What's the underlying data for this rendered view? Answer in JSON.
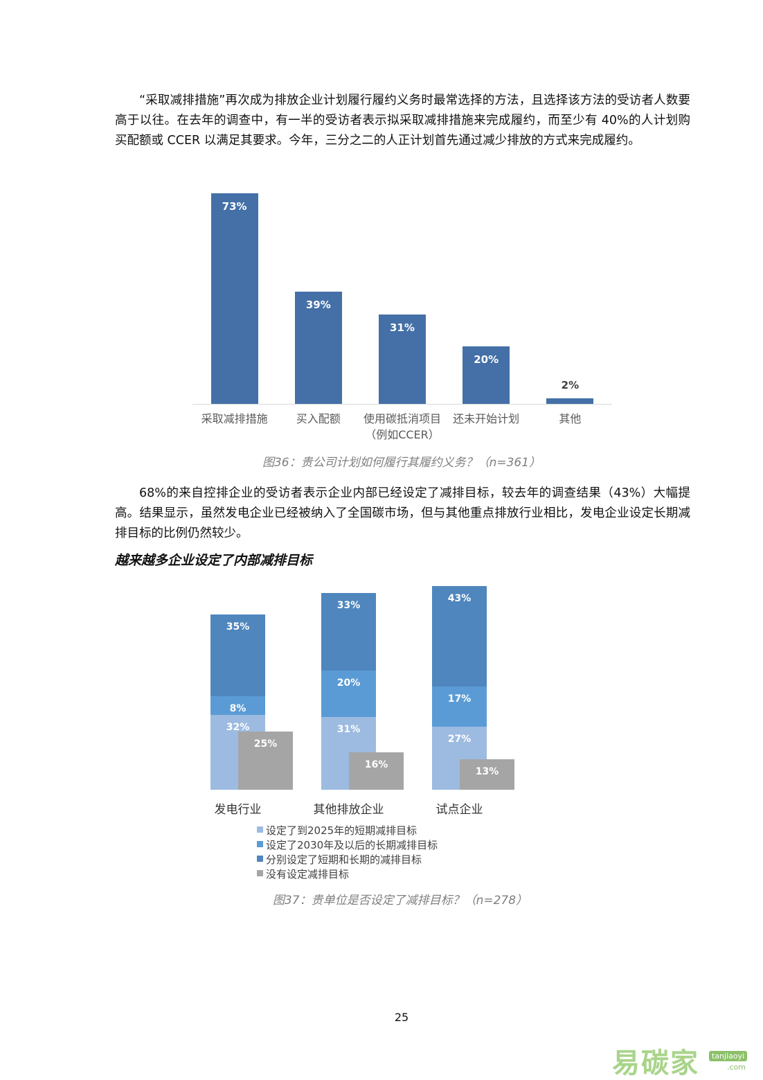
{
  "paragraphs": [
    "“采取减排措施”再次成为排放企业计划履行履约义务时最常选择的方法，且选择该方法的受访者人数要高于以往。在去年的调查中，有一半的受访者表示拟采取减排措施来完成履约，而至少有 40%的人计划购买配额或 CCER 以满足其要求。今年，三分之二的人正计划首先通过减少排放的方式来完成履约。",
    "68%的来自控排企业的受访者表示企业内部已经设定了减排目标，较去年的调查结果（43%）大幅提高。结果显示，虽然发电企业已经被纳入了全国碳市场，但与其他重点排放行业相比，发电企业设定长期减排目标的比例仍然较少。"
  ],
  "section_title": "越来越多企业设定了内部减排目标",
  "chart_data": [
    {
      "type": "bar",
      "caption": "图36：贵公司计划如何履行其履约义务？（n=361）",
      "categories": [
        "采取减排措施",
        "买入配额",
        "使用碳抵消项目\n（例如CCER）",
        "还未开始计划",
        "其他"
      ],
      "values": [
        73,
        39,
        31,
        20,
        2
      ],
      "value_labels": [
        "73%",
        "39%",
        "31%",
        "20%",
        "2%"
      ],
      "color": "#4470a7"
    },
    {
      "type": "stacked_bar",
      "caption": "图37：贵单位是否设定了减排目标？（n=278）",
      "categories": [
        "发电行业",
        "其他排放企业",
        "试点企业"
      ],
      "series": [
        {
          "name": "设定了到2025年的短期减排目标",
          "color": "#9dbbe1",
          "values": [
            32,
            31,
            27
          ],
          "value_labels": [
            "32%",
            "31%",
            "27%"
          ]
        },
        {
          "name": "设定了2030年及以后的长期减排目标",
          "color": "#5b9bd5",
          "values": [
            8,
            20,
            17
          ],
          "value_labels": [
            "8%",
            "20%",
            "17%"
          ]
        },
        {
          "name": "分别设定了短期和长期的减排目标",
          "color": "#4f86bd",
          "values": [
            35,
            33,
            43
          ],
          "value_labels": [
            "35%",
            "33%",
            "43%"
          ]
        },
        {
          "name": "没有设定减排目标",
          "color": "#a5a5a5",
          "values": [
            25,
            16,
            13
          ],
          "value_labels": [
            "25%",
            "16%",
            "13%"
          ]
        }
      ]
    }
  ],
  "page_number": "25",
  "watermark": {
    "brand": "易碳家",
    "domain": "tanjiaoyi",
    "suffix": ".com"
  }
}
